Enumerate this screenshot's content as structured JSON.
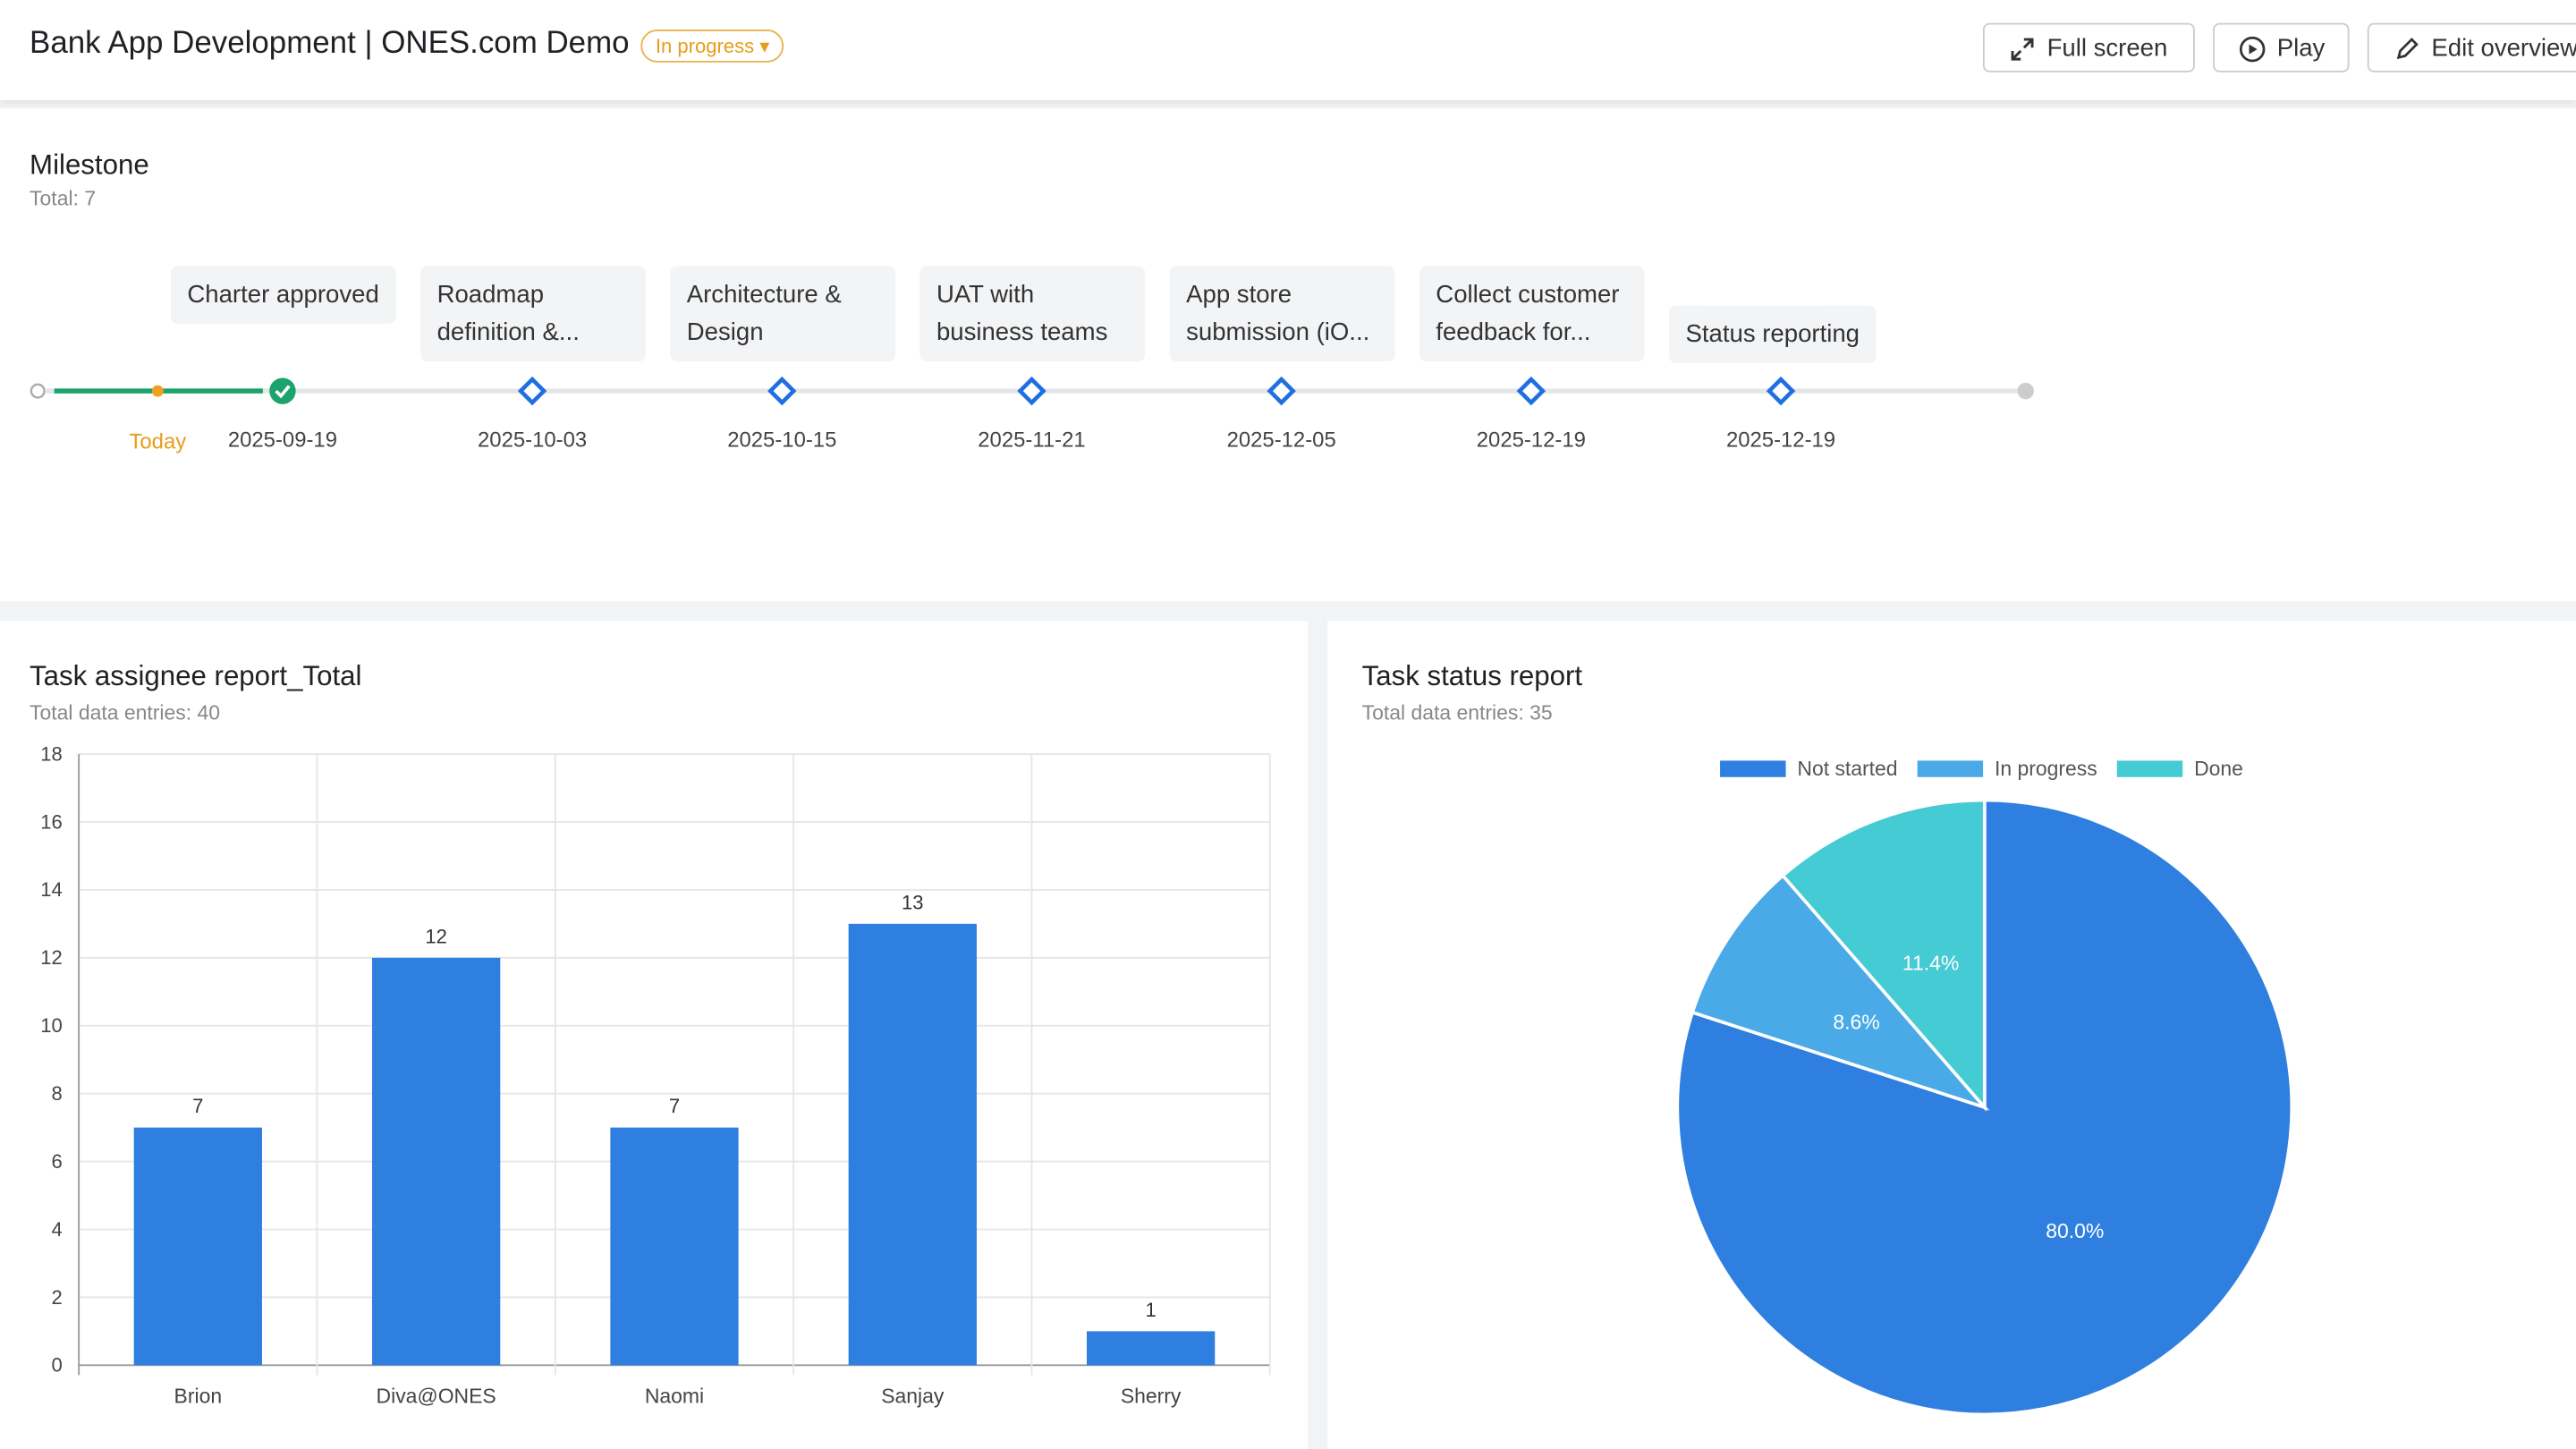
{
  "header": {
    "title": "Bank App Development | ONES.com Demo",
    "status": "In progress",
    "buttons": [
      "Full screen",
      "Play",
      "Edit overview"
    ]
  },
  "milestone": {
    "title": "Milestone",
    "total": "Total: 7",
    "today": "Today",
    "items": [
      {
        "label": "Charter approved",
        "date": "2025-09-19"
      },
      {
        "label": "Roadmap definition &...",
        "date": "2025-10-03"
      },
      {
        "label": "Architecture & Design",
        "date": "2025-10-15"
      },
      {
        "label": "UAT with business teams",
        "date": "2025-11-21"
      },
      {
        "label": "App store submission (iO...",
        "date": "2025-12-05"
      },
      {
        "label": "Collect customer feedback for...",
        "date": "2025-12-19"
      },
      {
        "label": "Status reporting",
        "date": "2025-12-19"
      }
    ]
  },
  "chart_data": [
    {
      "type": "bar",
      "title": "Task assignee report_Total",
      "subtitle": "Total data entries: 40",
      "categories": [
        "Brion",
        "Diva@ONES",
        "Naomi",
        "Sanjay",
        "Sherry"
      ],
      "values": [
        7,
        12,
        7,
        13,
        1
      ],
      "color": "#2f7fe0",
      "ylim": [
        0,
        18
      ],
      "yticks": [
        0,
        2,
        4,
        6,
        8,
        10,
        12,
        14,
        16,
        18
      ],
      "grid": true
    },
    {
      "type": "pie",
      "title": "Task status report",
      "subtitle": "Total data entries: 35",
      "categories": [
        "Not started",
        "In progress",
        "Done"
      ],
      "values": [
        80.0,
        8.6,
        11.4
      ],
      "value_labels": [
        "80.0%",
        "8.6%",
        "11.4%"
      ],
      "colors": [
        "#2f7fe0",
        "#4aaae8",
        "#45cbd3"
      ],
      "legend": "top"
    }
  ]
}
